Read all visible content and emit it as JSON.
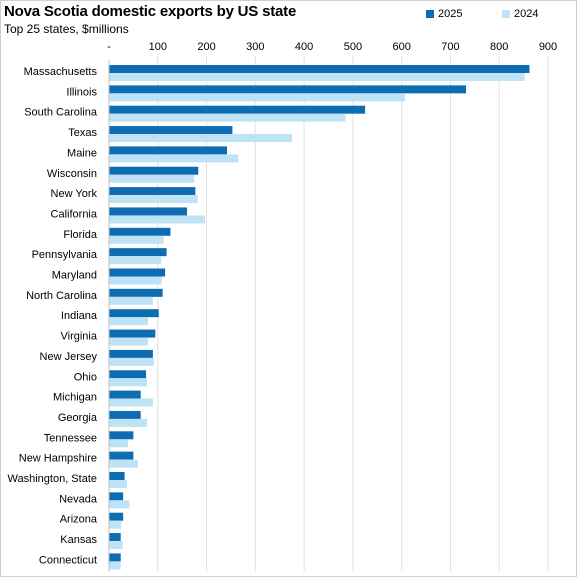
{
  "title": "Nova Scotia domestic exports by US state",
  "subtitle": "Top 25 states, $millions",
  "colors": {
    "s2025": "#0E6DB2",
    "s2024": "#BEE3F6",
    "grid": "#e3e3e3",
    "frame": "#d0d0d0"
  },
  "chart_data": {
    "type": "bar",
    "orientation": "horizontal",
    "title": "Nova Scotia domestic exports by US state",
    "subtitle": "Top 25 states, $millions",
    "xlim": [
      0,
      900
    ],
    "x_ticks": [
      "-",
      "100",
      "200",
      "300",
      "400",
      "500",
      "600",
      "700",
      "800",
      "900"
    ],
    "x_tick_values": [
      0,
      100,
      200,
      300,
      400,
      500,
      600,
      700,
      800,
      900
    ],
    "legend_position": "top-right",
    "grid": true,
    "categories": [
      "Massachusetts",
      "Illinois",
      "South Carolina",
      "Texas",
      "Maine",
      "Wisconsin",
      "New York",
      "California",
      "Florida",
      "Pennsylvania",
      "Maryland",
      "North Carolina",
      "Indiana",
      "Virginia",
      "New Jersey",
      "Ohio",
      "Michigan",
      "Georgia",
      "Tennessee",
      "New Hampshire",
      "Washington, State",
      "Nevada",
      "Arizona",
      "Kansas",
      "Connecticut"
    ],
    "series": [
      {
        "name": "2025",
        "color": "#0E6DB2",
        "values": [
          862,
          732,
          525,
          253,
          242,
          183,
          177,
          160,
          126,
          118,
          115,
          110,
          102,
          95,
          90,
          76,
          65,
          65,
          50,
          50,
          32,
          29,
          29,
          24,
          24
        ]
      },
      {
        "name": "2024",
        "color": "#BEE3F6",
        "values": [
          852,
          607,
          485,
          375,
          265,
          175,
          182,
          197,
          112,
          107,
          108,
          90,
          80,
          80,
          92,
          78,
          90,
          78,
          39,
          59,
          37,
          42,
          25,
          28,
          24
        ]
      }
    ]
  }
}
